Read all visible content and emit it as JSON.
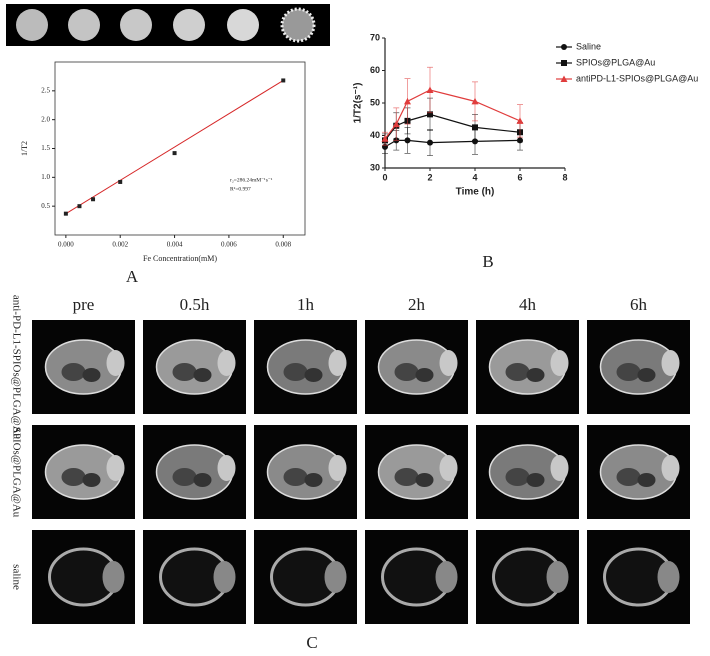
{
  "chart_data": [
    {
      "type": "scatter",
      "x_label": "Fe Concentration(mM)",
      "y_label": "1/T2",
      "x": [
        0,
        0.0005,
        0.001,
        0.002,
        0.004,
        0.008
      ],
      "values": [
        0.37,
        0.5,
        0.62,
        0.92,
        1.42,
        2.68
      ],
      "color": "#222222",
      "fit_color": "#d62728",
      "xlim": [
        -0.0004,
        0.0088
      ],
      "xticks": [
        {
          "value": 0,
          "label": "0.000"
        },
        {
          "value": 0.002,
          "label": "0.002"
        },
        {
          "value": 0.004,
          "label": "0.004"
        },
        {
          "value": 0.006,
          "label": "0.006"
        },
        {
          "value": 0.008,
          "label": "0.008"
        }
      ],
      "ylim": [
        0,
        3
      ],
      "yticks": [
        0.5,
        {
          "value": 1,
          "label": "1.0"
        },
        1.5,
        {
          "value": 2,
          "label": "2.0"
        },
        2.5
      ],
      "annotations": [
        "r₂=286.24mM⁻¹s⁻¹",
        "R²=0.997"
      ],
      "panel": "A"
    },
    {
      "type": "line",
      "x_label": "Time (h)",
      "y_label": "1/T2(s⁻¹)",
      "x": [
        0,
        0.5,
        1,
        2,
        4,
        6
      ],
      "series": [
        {
          "name": "Saline",
          "color": "#111111",
          "marker": "circle",
          "values": [
            36.5,
            38.5,
            38.5,
            37.8,
            38.2,
            38.5
          ],
          "errors": [
            2,
            3,
            4,
            4,
            4,
            3
          ]
        },
        {
          "name": "SPIOs@PLGA@Au",
          "color": "#111111",
          "marker": "square",
          "values": [
            38.5,
            43,
            44.5,
            46.5,
            42.5,
            41
          ],
          "errors": [
            2,
            4,
            4,
            5,
            4,
            3
          ]
        },
        {
          "name": "antiPD-L1-SPIOs@PLGA@Au",
          "color": "#e03c3c",
          "marker": "triangle",
          "values": [
            39,
            43.5,
            50.5,
            54,
            50.5,
            44.5
          ],
          "errors": [
            2,
            5,
            7,
            7,
            6,
            5
          ]
        }
      ],
      "xlim": [
        0,
        8
      ],
      "xticks": [
        0,
        2,
        4,
        6,
        8
      ],
      "ylim": [
        30,
        70
      ],
      "yticks": [
        30,
        40,
        50,
        60,
        70
      ],
      "legend": "outside-right",
      "panel": "B"
    }
  ],
  "image_grid": {
    "columns": [
      "pre",
      "0.5h",
      "1h",
      "2h",
      "4h",
      "6h"
    ],
    "rows": [
      "anti-PD-L1-SPIOs@PLGA@Au",
      "SPIOs@PLGA@Au",
      "saline"
    ],
    "panel": "C"
  }
}
